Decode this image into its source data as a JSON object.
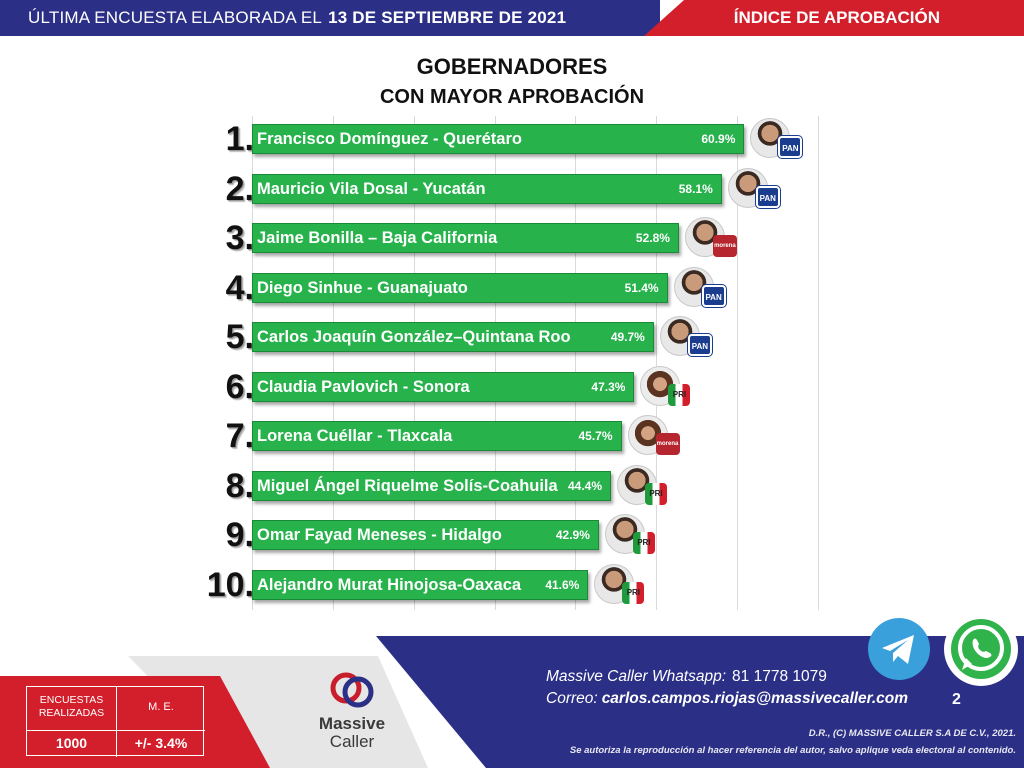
{
  "header": {
    "left_text": "ÚLTIMA ENCUESTA ELABORADA EL",
    "date": "13 DE SEPTIEMBRE DE 2021",
    "right_text": "ÍNDICE DE APROBACIÓN"
  },
  "chart_data": {
    "type": "bar",
    "orientation": "horizontal",
    "title": "GOBERNADORES",
    "subtitle": "CON MAYOR APROBACIÓN",
    "categories": [
      "Francisco Domínguez - Querétaro",
      "Mauricio Vila Dosal - Yucatán",
      "Jaime Bonilla – Baja California",
      "Diego Sinhue - Guanajuato",
      "Carlos Joaquín González–Quintana Roo",
      "Claudia Pavlovich - Sonora",
      "Lorena Cuéllar - Tlaxcala",
      "Miguel Ángel Riquelme Solís-Coahuila",
      "Omar Fayad Meneses - Hidalgo",
      "Alejandro Murat Hinojosa-Oaxaca"
    ],
    "ranks": [
      "1.",
      "2.",
      "3.",
      "4.",
      "5.",
      "6.",
      "7.",
      "8.",
      "9.",
      "10."
    ],
    "values": [
      60.9,
      58.1,
      52.8,
      51.4,
      49.7,
      47.3,
      45.7,
      44.4,
      42.9,
      41.6
    ],
    "value_labels": [
      "60.9%",
      "58.1%",
      "52.8%",
      "51.4%",
      "49.7%",
      "47.3%",
      "45.7%",
      "44.4%",
      "42.9%",
      "41.6%"
    ],
    "parties": [
      "PAN",
      "PAN",
      "morena",
      "PAN",
      "PAN",
      "PRI",
      "morena",
      "PRI",
      "PRI",
      "PRI"
    ],
    "bar_color": "#27b24c",
    "xlim": [
      0,
      70
    ],
    "grid": true,
    "legend": "none"
  },
  "party_labels": {
    "PAN": "PAN",
    "morena": "morena",
    "PRI": "PRI"
  },
  "colors": {
    "header_blue": "#2b2f86",
    "header_red": "#d31f2b",
    "pan_blue": "#1b3d8f",
    "morena_red": "#b5262e"
  },
  "stats": {
    "label_1": "ENCUESTAS REALIZADAS",
    "label_2": "M. E.",
    "value_1": "1000",
    "value_2": "+/- 3.4%"
  },
  "logo": {
    "line1": "Massive",
    "line2": "Caller"
  },
  "contact": {
    "whatsapp_label": "Massive Caller Whatsapp:",
    "whatsapp_number": "81 1778 1079",
    "email_label": "Correo:",
    "email": "carlos.campos.riojas@massivecaller.com",
    "page_number": "2",
    "copyright": "D.R., (C) MASSIVE CALLER S.A DE C.V., 2021.",
    "authorization": "Se autoriza la reproducción al hacer referencia del autor, salvo aplique veda electoral al contenido."
  },
  "icons": {
    "telegram": "telegram-icon",
    "whatsapp": "whatsapp-icon"
  }
}
